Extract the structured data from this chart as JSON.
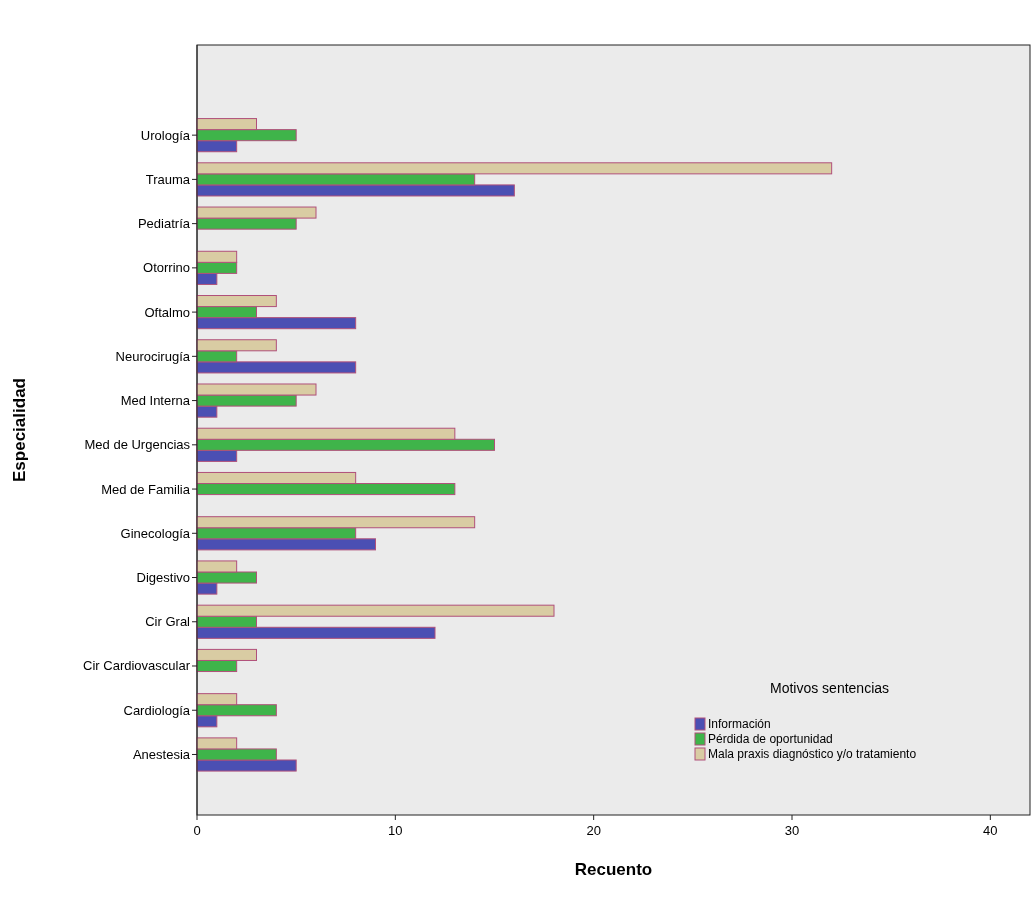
{
  "chart_data": {
    "type": "bar",
    "orientation": "horizontal",
    "xlabel": "Recuento",
    "ylabel": "Especialidad",
    "legend_title": "Motivos sentencias",
    "legend": "bottom right",
    "grid": false,
    "categories": [
      "Urología",
      "Trauma",
      "Pediatría",
      "Otorrino",
      "Oftalmo",
      "Neurocirugía",
      "Med Interna",
      "Med de Urgencias",
      "Med de Familia",
      "Ginecología",
      "Digestivo",
      "Cir Gral",
      "Cir Cardiovascular",
      "Cardiología",
      "Anestesia"
    ],
    "xlim": [
      0,
      42
    ],
    "xticks": [
      0,
      10,
      20,
      30,
      40
    ],
    "series": [
      {
        "name": "Información",
        "color": "#4b4fb3",
        "values": [
          2,
          16,
          null,
          1,
          8,
          8,
          1,
          2,
          null,
          9,
          1,
          12,
          null,
          1,
          5
        ]
      },
      {
        "name": "Pérdida de oportunidad",
        "color": "#3fb44a",
        "values": [
          5,
          14,
          5,
          2,
          3,
          2,
          5,
          15,
          13,
          8,
          3,
          3,
          2,
          4,
          4
        ]
      },
      {
        "name": "Mala praxis diagnóstico y/o tratamiento",
        "color": "#d9cca3",
        "values": [
          3,
          32,
          6,
          2,
          4,
          4,
          6,
          13,
          8,
          14,
          2,
          18,
          3,
          2,
          2
        ]
      }
    ]
  }
}
